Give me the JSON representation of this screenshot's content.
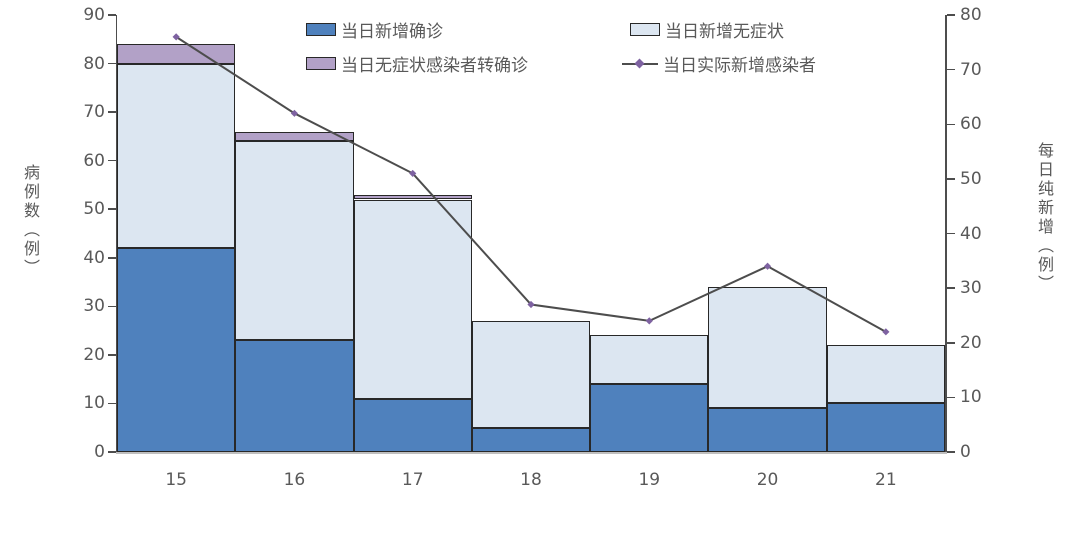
{
  "chart_data": {
    "type": "bar",
    "subtype": "stacked-bars-with-line",
    "categories": [
      "15",
      "16",
      "17",
      "18",
      "19",
      "20",
      "21"
    ],
    "series": [
      {
        "name": "当日新增确诊",
        "role": "bar",
        "color": "#4f81bd",
        "values": [
          42,
          23,
          11,
          5,
          14,
          9,
          10
        ]
      },
      {
        "name": "当日新增无症状",
        "role": "bar",
        "color": "#dce6f1",
        "values": [
          38,
          41,
          41,
          22,
          10,
          25,
          12
        ]
      },
      {
        "name": "当日无症状感染者转确诊",
        "role": "bar",
        "color": "#b2a1c7",
        "values": [
          4,
          2,
          1,
          0,
          0,
          0,
          0
        ]
      },
      {
        "name": "当日实际新增感染者",
        "role": "line",
        "color": "#4d4d4d",
        "marker_color": "#7e62a1",
        "axis": "right",
        "values": [
          76,
          62,
          51,
          27,
          24,
          34,
          22
        ]
      }
    ],
    "stack_totals": [
      84,
      66,
      53,
      27,
      24,
      34,
      22
    ],
    "left_axis": {
      "title": "病例数（例）",
      "min": 0,
      "max": 90,
      "tick_step": 10,
      "tick_labels": [
        "90",
        "80",
        "70",
        "60",
        "50",
        "40",
        "30",
        "20",
        "10",
        "0"
      ]
    },
    "right_axis": {
      "title": "每日纯新增（例）",
      "min": 0,
      "max": 80,
      "tick_step": 10,
      "tick_labels": [
        "80",
        "70",
        "60",
        "50",
        "40",
        "30",
        "20",
        "10",
        "0"
      ]
    },
    "xlabel": "",
    "title": "",
    "legend_position": "top-inside",
    "grid": false,
    "colors": {
      "background": "#ffffff",
      "bar_border": "#282828",
      "axis_line": "#4d4d4d",
      "x_baseline": "#bfbfbf",
      "text": "#595959"
    }
  }
}
